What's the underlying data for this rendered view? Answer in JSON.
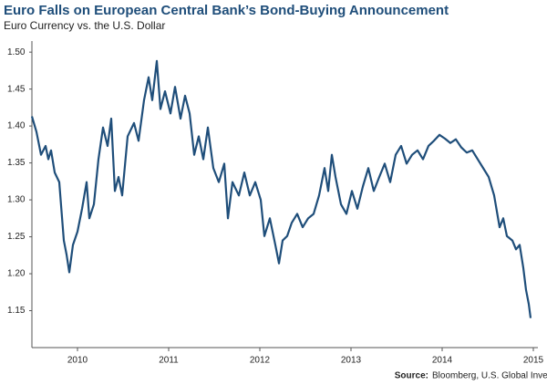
{
  "chart_data": {
    "type": "line",
    "title": "Euro Falls on European Central Bank’s Bond-Buying Announcement",
    "subtitle": "Euro Currency vs. the U.S. Dollar",
    "source_label": "Source:",
    "source": "Bloomberg, U.S. Global Investors",
    "color": "#1f4e7a",
    "x": [
      2009.5,
      2009.55,
      2009.6,
      2009.65,
      2009.68,
      2009.71,
      2009.75,
      2009.8,
      2009.85,
      2009.88,
      2009.91,
      2009.95,
      2010.0,
      2010.05,
      2010.1,
      2010.13,
      2010.18,
      2010.23,
      2010.28,
      2010.33,
      2010.37,
      2010.41,
      2010.45,
      2010.49,
      2010.55,
      2010.62,
      2010.67,
      2010.73,
      2010.78,
      2010.82,
      2010.87,
      2010.91,
      2010.96,
      2011.02,
      2011.07,
      2011.13,
      2011.18,
      2011.23,
      2011.28,
      2011.33,
      2011.38,
      2011.43,
      2011.49,
      2011.55,
      2011.61,
      2011.65,
      2011.7,
      2011.77,
      2011.83,
      2011.89,
      2011.95,
      2012.01,
      2012.05,
      2012.11,
      2012.17,
      2012.21,
      2012.25,
      2012.3,
      2012.35,
      2012.41,
      2012.47,
      2012.53,
      2012.59,
      2012.65,
      2012.71,
      2012.75,
      2012.79,
      2012.83,
      2012.89,
      2012.95,
      2013.01,
      2013.07,
      2013.13,
      2013.19,
      2013.25,
      2013.31,
      2013.37,
      2013.43,
      2013.49,
      2013.55,
      2013.61,
      2013.67,
      2013.73,
      2013.79,
      2013.85,
      2013.91,
      2013.97,
      2014.03,
      2014.09,
      2014.15,
      2014.21,
      2014.27,
      2014.33,
      2014.39,
      2014.45,
      2014.51,
      2014.57,
      2014.63,
      2014.67,
      2014.71,
      2014.77,
      2014.81,
      2014.85,
      2014.89,
      2014.92,
      2014.95,
      2014.97
    ],
    "values": [
      1.413,
      1.392,
      1.361,
      1.373,
      1.355,
      1.367,
      1.337,
      1.324,
      1.245,
      1.226,
      1.202,
      1.239,
      1.257,
      1.288,
      1.324,
      1.275,
      1.294,
      1.355,
      1.398,
      1.373,
      1.41,
      1.312,
      1.331,
      1.306,
      1.386,
      1.404,
      1.38,
      1.435,
      1.466,
      1.435,
      1.488,
      1.423,
      1.447,
      1.417,
      1.453,
      1.41,
      1.441,
      1.417,
      1.361,
      1.386,
      1.355,
      1.398,
      1.343,
      1.324,
      1.349,
      1.275,
      1.324,
      1.306,
      1.337,
      1.306,
      1.324,
      1.3,
      1.251,
      1.275,
      1.239,
      1.214,
      1.245,
      1.251,
      1.269,
      1.281,
      1.263,
      1.275,
      1.281,
      1.306,
      1.343,
      1.312,
      1.361,
      1.331,
      1.294,
      1.281,
      1.312,
      1.288,
      1.318,
      1.343,
      1.312,
      1.331,
      1.349,
      1.324,
      1.361,
      1.373,
      1.349,
      1.361,
      1.367,
      1.355,
      1.373,
      1.38,
      1.388,
      1.383,
      1.377,
      1.382,
      1.371,
      1.364,
      1.367,
      1.355,
      1.343,
      1.331,
      1.306,
      1.263,
      1.275,
      1.251,
      1.245,
      1.233,
      1.239,
      1.208,
      1.178,
      1.159,
      1.14
    ],
    "xlim": [
      2009.5,
      2015.0
    ],
    "xticks": [
      2010,
      2011,
      2012,
      2013,
      2014,
      2015
    ],
    "ylim": [
      1.1,
      1.515
    ],
    "yticks": [
      1.15,
      {
        "value": 1.2,
        "label": "1.20"
      },
      1.25,
      {
        "value": 1.3,
        "label": "1.30"
      },
      1.35,
      {
        "value": 1.4,
        "label": "1.40"
      },
      1.45,
      {
        "value": 1.5,
        "label": "1.50"
      }
    ]
  }
}
